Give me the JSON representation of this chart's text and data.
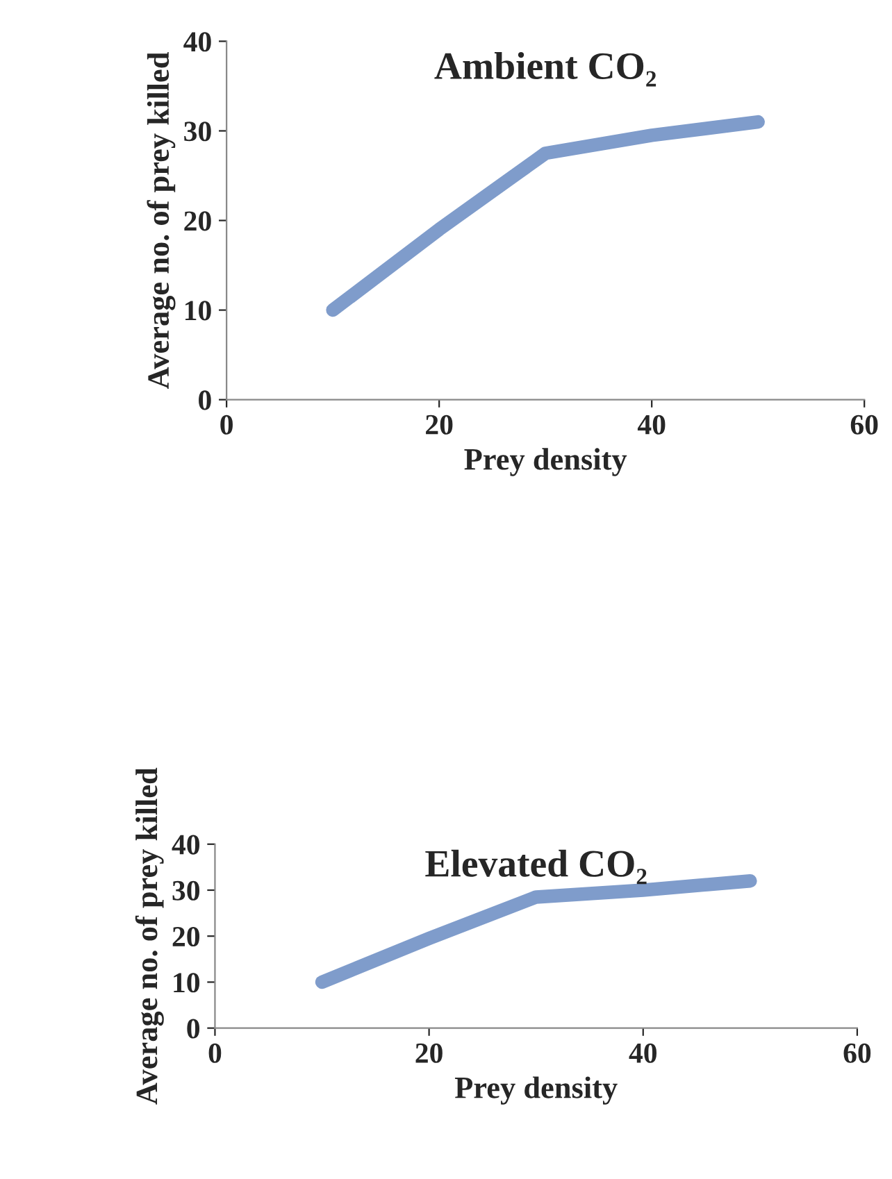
{
  "chart_data": [
    {
      "type": "line",
      "title": "Ambient CO₂",
      "xlabel": "Prey density",
      "ylabel": "Average no. of prey killed",
      "x": [
        10,
        20,
        30,
        40,
        50
      ],
      "series": [
        {
          "color": "#7f9ccb",
          "values": [
            10,
            19,
            27.5,
            29.5,
            31
          ]
        }
      ],
      "xlim": [
        0,
        60
      ],
      "xticks": [
        0,
        20,
        40,
        60
      ],
      "ylim": [
        0,
        40
      ],
      "yticks": [
        0,
        10,
        20,
        30,
        40
      ],
      "grid": false,
      "legend": false
    },
    {
      "type": "line",
      "title": "Elevated CO₂",
      "xlabel": "Prey density",
      "ylabel": "Average no. of prey killed",
      "x": [
        10,
        20,
        30,
        40,
        50
      ],
      "series": [
        {
          "color": "#7f9ccb",
          "values": [
            10,
            19.5,
            28.5,
            30,
            32
          ]
        }
      ],
      "xlim": [
        0,
        60
      ],
      "xticks": [
        0,
        20,
        40,
        60
      ],
      "ylim": [
        0,
        40
      ],
      "yticks": [
        0,
        10,
        20,
        30,
        40
      ],
      "grid": false,
      "legend": false
    }
  ]
}
